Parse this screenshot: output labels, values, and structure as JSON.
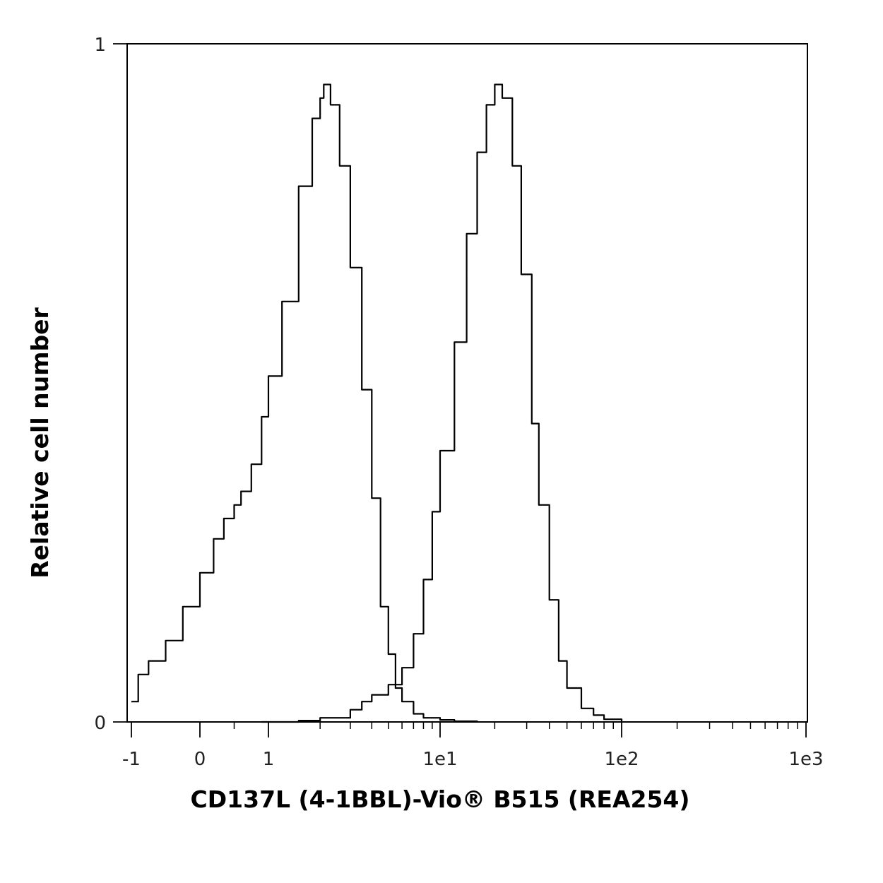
{
  "chart_data": {
    "type": "line",
    "title": "",
    "xlabel": "CD137L (4-1BBL)-Vio® B515 (REA254)",
    "ylabel": "Relative cell number",
    "x_scale": "biexponential (linear near 0, logarithmic above 1)",
    "x_ticks": [
      "-1",
      "0",
      "1",
      "1e1",
      "1e2",
      "1e3"
    ],
    "y_ticks": [
      "0",
      "1"
    ],
    "xlim": [
      -1,
      1000
    ],
    "ylim": [
      0,
      1
    ],
    "grid": false,
    "legend": "none",
    "line_color": "#000000",
    "series": [
      {
        "x": [
          -1,
          -0.9,
          -0.75,
          -0.5,
          -0.25,
          0,
          0.2,
          0.35,
          0.5,
          0.6,
          0.75,
          0.9,
          1.0,
          1.2,
          1.5,
          1.8,
          2.0,
          2.1,
          2.3,
          2.6,
          3.0,
          3.5,
          4.0,
          4.5,
          5.0,
          5.5,
          6.0,
          7.0,
          8.0,
          10,
          12,
          16
        ],
        "values": [
          0.03,
          0.07,
          0.09,
          0.12,
          0.17,
          0.22,
          0.27,
          0.3,
          0.32,
          0.34,
          0.38,
          0.45,
          0.51,
          0.62,
          0.79,
          0.89,
          0.92,
          0.94,
          0.91,
          0.82,
          0.67,
          0.49,
          0.33,
          0.17,
          0.1,
          0.05,
          0.03,
          0.012,
          0.006,
          0.003,
          0.001,
          0.0
        ]
      },
      {
        "x": [
          0.9,
          1.5,
          2.0,
          3.0,
          3.5,
          4.0,
          5.0,
          6.0,
          7.0,
          8.0,
          9.0,
          10,
          12,
          14,
          16,
          18,
          20,
          22,
          25,
          28,
          32,
          35,
          40,
          45,
          50,
          60,
          70,
          80,
          100
        ],
        "values": [
          0.0,
          0.002,
          0.006,
          0.018,
          0.03,
          0.04,
          0.055,
          0.08,
          0.13,
          0.21,
          0.31,
          0.4,
          0.56,
          0.72,
          0.84,
          0.91,
          0.94,
          0.92,
          0.82,
          0.66,
          0.44,
          0.32,
          0.18,
          0.09,
          0.05,
          0.02,
          0.01,
          0.004,
          0.001
        ]
      }
    ]
  }
}
